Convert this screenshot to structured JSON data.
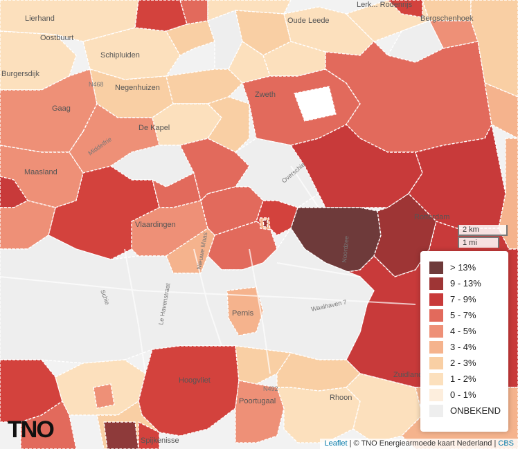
{
  "logo_text": "TNO",
  "legend": {
    "items": [
      {
        "label": "> 13%",
        "color": "#6e3a3a"
      },
      {
        "label": "9 - 13%",
        "color": "#9e3535"
      },
      {
        "label": "7 - 9%",
        "color": "#c83a3a"
      },
      {
        "label": "5 - 7%",
        "color": "#e26a5c"
      },
      {
        "label": "4 - 5%",
        "color": "#ee9077"
      },
      {
        "label": "3 - 4%",
        "color": "#f5b38d"
      },
      {
        "label": "2 - 3%",
        "color": "#f9cfa4"
      },
      {
        "label": "1 - 2%",
        "color": "#fce0bd"
      },
      {
        "label": "0 - 1%",
        "color": "#fdeedd"
      },
      {
        "label": "ONBEKEND",
        "color": "#eeeeee"
      }
    ]
  },
  "scale": {
    "km": "2 km",
    "mi": "1 mi"
  },
  "attribution": {
    "leaflet": "Leaflet",
    "sep": "|",
    "tno": "© TNO Energiearmoede kaart Nederland",
    "cbs": "CBS"
  },
  "places": [
    "Lierhand",
    "Oostbuurt",
    "Schipluiden",
    "Burgersdijk",
    "N468",
    "Negenhuizen",
    "Gaag",
    "De Kapel",
    "Maasland",
    "Middelfrie",
    "Zweth",
    "Oude Leede",
    "Lerk... Rodenrijs",
    "Bergschenhoek",
    "Vlaardingen",
    "Rotterdam",
    "Pernis",
    "Hoogvliet",
    "Poortugaal",
    "Spijkenisse",
    "Rhoon",
    "Waalhaven 7",
    "Schie",
    "Nieuwe Maas",
    "Le Havenstraat",
    "Overschie",
    "Noordzee",
    "N492",
    "Zuidland"
  ]
}
